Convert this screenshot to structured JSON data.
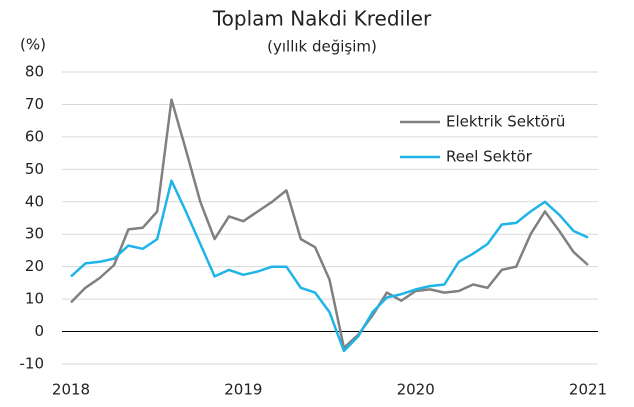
{
  "chart_data": {
    "type": "line",
    "title": "Toplam Nakdi Krediler",
    "subtitle": "(yıllık değişim)",
    "y_label": "(%)",
    "categories": [
      "2018",
      null,
      null,
      null,
      null,
      null,
      null,
      null,
      null,
      null,
      null,
      null,
      "2019",
      null,
      null,
      null,
      null,
      null,
      null,
      null,
      null,
      null,
      null,
      null,
      "2020",
      null,
      null,
      null,
      null,
      null,
      null,
      null,
      null,
      null,
      null,
      null,
      "2021"
    ],
    "series": [
      {
        "name": "Elektrik Sektörü",
        "color": "#808080",
        "values": [
          9,
          13.5,
          16.5,
          20.5,
          31.5,
          32,
          37,
          71.5,
          56,
          40,
          28.5,
          35.5,
          34,
          37,
          40,
          43.5,
          28.5,
          26,
          16,
          -5,
          -1,
          5,
          12,
          9.5,
          12.5,
          13,
          12,
          12.5,
          14.5,
          13.5,
          19,
          20,
          30,
          37,
          31,
          24.5,
          20.5
        ]
      },
      {
        "name": "Reel Sektör",
        "color": "#1fb4e8",
        "values": [
          17,
          21,
          21.5,
          22.5,
          26.5,
          25.5,
          28.5,
          46.5,
          37,
          27,
          17,
          19,
          17.5,
          18.5,
          20,
          20,
          13.5,
          12,
          6,
          -6,
          -1.5,
          6,
          10.5,
          11.5,
          13,
          14,
          14.5,
          21.5,
          24,
          27,
          33,
          33.5,
          37,
          40,
          36,
          31,
          29
        ]
      }
    ],
    "ylim": [
      -10,
      80
    ],
    "yticks": [
      -10,
      0,
      10,
      20,
      30,
      40,
      50,
      60,
      70,
      80
    ],
    "grid": true,
    "legend": "upper right"
  }
}
